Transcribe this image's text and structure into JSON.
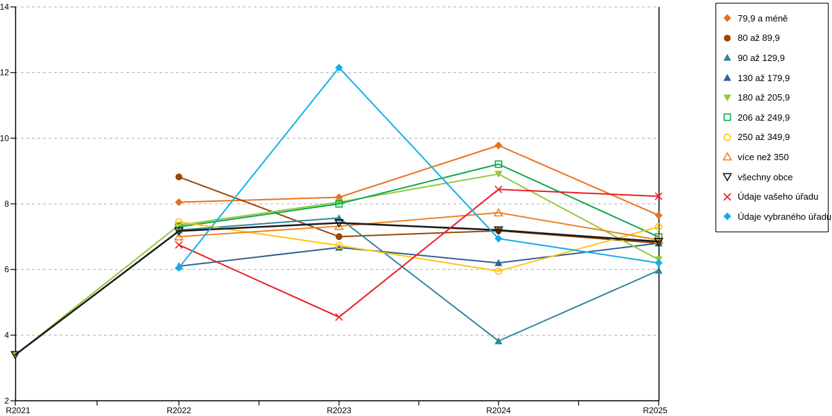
{
  "chart_data": {
    "type": "line",
    "title": "",
    "xlabel": "",
    "ylabel": "",
    "categories": [
      "R2021",
      "R2022",
      "R2023",
      "R2024",
      "R2025"
    ],
    "y_axis": {
      "min": 2,
      "max": 14,
      "tick_step": 2,
      "ticks": [
        2,
        4,
        6,
        8,
        10,
        12,
        14
      ]
    },
    "grid": "horizontal-dashed",
    "legend_position": "right",
    "series": [
      {
        "name": "79,9 a méně",
        "color": "#E8721C",
        "marker": "diamond",
        "line_width": 2,
        "values": [
          null,
          8.05,
          8.2,
          9.78,
          7.65
        ]
      },
      {
        "name": "80 až 89,9",
        "color": "#974706",
        "marker": "circle",
        "line_width": 2,
        "values": [
          null,
          8.82,
          7.0,
          7.18,
          6.8
        ]
      },
      {
        "name": "90 až 129,9",
        "color": "#31859C",
        "marker": "triangle-up",
        "line_width": 2,
        "values": [
          null,
          7.2,
          7.57,
          3.82,
          5.97
        ]
      },
      {
        "name": "130 až 179,9",
        "color": "#31618F",
        "marker": "triangle-up",
        "line_width": 2,
        "values": [
          null,
          6.1,
          6.67,
          6.2,
          6.8
        ]
      },
      {
        "name": "180 až 205,9",
        "color": "#92C83E",
        "marker": "triangle-down",
        "line_width": 2,
        "values": [
          3.4,
          7.35,
          8.05,
          8.91,
          6.3
        ]
      },
      {
        "name": "206 až 249,9",
        "color": "#0AA84F",
        "marker": "square-open",
        "line_width": 2,
        "values": [
          null,
          7.3,
          8.0,
          9.21,
          6.99
        ]
      },
      {
        "name": "250 až 349,9",
        "color": "#FFC412",
        "marker": "circle-open",
        "line_width": 2,
        "values": [
          null,
          7.45,
          6.73,
          5.95,
          7.3
        ]
      },
      {
        "name": "více než 350",
        "color": "#EF8122",
        "marker": "triangle-up-open",
        "line_width": 2,
        "values": [
          null,
          7.0,
          7.32,
          7.73,
          6.9
        ]
      },
      {
        "name": "všechny obce",
        "color": "#1A1A1A",
        "marker": "triangle-down-open",
        "line_width": 2.5,
        "values": [
          3.4,
          7.17,
          7.42,
          7.2,
          6.85
        ]
      },
      {
        "name": "Údaje vašeho úřadu",
        "color": "#ED1C24",
        "marker": "x",
        "line_width": 2,
        "values": [
          null,
          6.75,
          4.55,
          8.44,
          8.23
        ]
      },
      {
        "name": "Údaje vybraného úřadu",
        "color": "#12AEEB",
        "marker": "diamond",
        "line_width": 2,
        "values": [
          null,
          6.05,
          12.15,
          6.94,
          6.2
        ]
      }
    ]
  },
  "colors": {
    "grid": "#ADADAD",
    "axis": "#000000",
    "background": "#FFFFFF"
  }
}
